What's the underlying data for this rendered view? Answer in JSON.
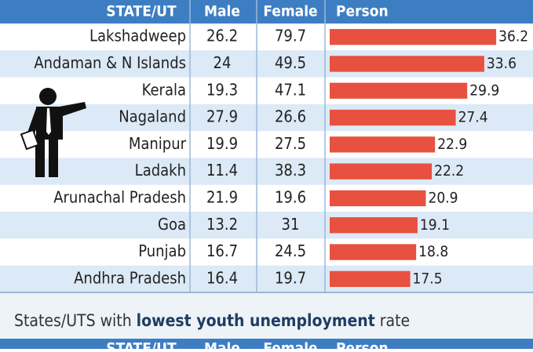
{
  "header": {
    "columns": [
      "STATE/UT",
      "Male",
      "Female",
      "Person"
    ]
  },
  "rows": [
    {
      "state": "Lakshadweep",
      "male": 26.2,
      "female": 79.7,
      "person": 36.2
    },
    {
      "state": "Andaman & N Islands",
      "male": 24,
      "female": 49.5,
      "person": 33.6
    },
    {
      "state": "Kerala",
      "male": 19.3,
      "female": 47.1,
      "person": 29.9
    },
    {
      "state": "Nagaland",
      "male": 27.9,
      "female": 26.6,
      "person": 27.4
    },
    {
      "state": "Manipur",
      "male": 19.9,
      "female": 27.5,
      "person": 22.9
    },
    {
      "state": "Ladakh",
      "male": 11.4,
      "female": 38.3,
      "person": 22.2
    },
    {
      "state": "Arunachal Pradesh",
      "male": 21.9,
      "female": 19.6,
      "person": 20.9
    },
    {
      "state": "Goa",
      "male": 13.2,
      "female": 31,
      "person": 19.1
    },
    {
      "state": "Punjab",
      "male": 16.7,
      "female": 24.5,
      "person": 18.8
    },
    {
      "state": "Andhra Pradesh",
      "male": 16.4,
      "female": 19.7,
      "person": 17.5
    }
  ],
  "bar_color": "#e8513f",
  "subtitle": {
    "parts": [
      "States/UTS with ",
      "lowest youth unemployment",
      " rate"
    ]
  },
  "second_header": {
    "columns": [
      "STATE/UT",
      "Male",
      "Female",
      "Person"
    ]
  }
}
